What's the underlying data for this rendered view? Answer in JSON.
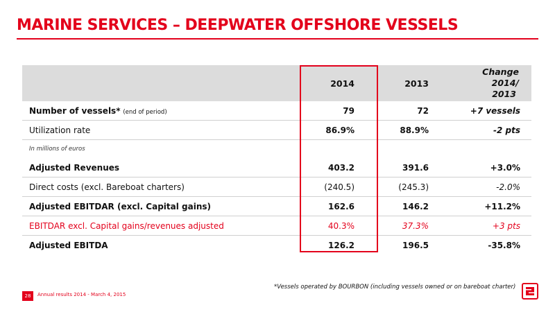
{
  "title": "MARINE SERVICES – DEEPWATER OFFSHORE VESSELS",
  "table": {
    "headers": {
      "col2014": "2014",
      "col2013": "2013",
      "change_l1": "Change",
      "change_l2": "2014/",
      "change_l3": "2013"
    },
    "rows": [
      {
        "label": "Number of vessels*",
        "label_note": "(end of period)",
        "v2014": "79",
        "v2013": "72",
        "change": "+7 vessels"
      },
      {
        "label": "Utilization rate",
        "v2014": "86.9%",
        "v2013": "88.9%",
        "change": "-2 pts"
      },
      {
        "label": "In millions of euros"
      },
      {
        "label": "Adjusted Revenues",
        "v2014": "403.2",
        "v2013": "391.6",
        "change": "+3.0%"
      },
      {
        "label": "Direct costs (excl. Bareboat charters)",
        "v2014": "(240.5)",
        "v2013": "(245.3)",
        "change": "-2.0%"
      },
      {
        "label": "Adjusted EBITDAR (excl. Capital gains)",
        "v2014": "162.6",
        "v2013": "146.2",
        "change": "+11.2%"
      },
      {
        "label": "EBITDAR excl. Capital gains/revenues adjusted",
        "v2014": "40.3%",
        "v2013": "37.3%",
        "change": "+3 pts"
      },
      {
        "label": "Adjusted EBITDA",
        "v2014": "126.2",
        "v2013": "196.5",
        "change": "-35.8%"
      }
    ]
  },
  "footnote": "*Vessels operated by BOURBON (including vessels owned or on bareboat charter)",
  "footer": {
    "page_number": "28",
    "text": "Annual results 2014 - March 4, 2015"
  },
  "colors": {
    "accent": "#e3001b",
    "header_bg": "#dcdcdc"
  }
}
